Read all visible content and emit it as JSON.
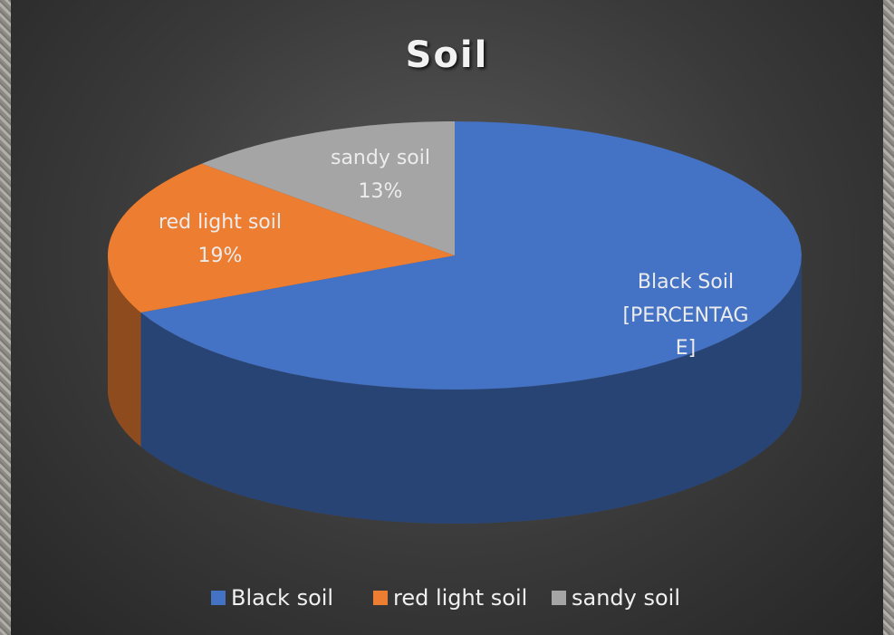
{
  "chart_data": {
    "type": "pie3d",
    "title": "Soil",
    "categories": [
      "Black soil",
      "red light soil",
      "sandy soil"
    ],
    "label_names": [
      "Black Soil",
      "red light soil",
      "sandy soil"
    ],
    "values": [
      68,
      19,
      13
    ],
    "value_labels": [
      "[PERCENTAGE]",
      "19%",
      "13%"
    ],
    "colors": [
      "#4472c4",
      "#ed7d31",
      "#a5a5a5"
    ],
    "legend": "bottom"
  }
}
